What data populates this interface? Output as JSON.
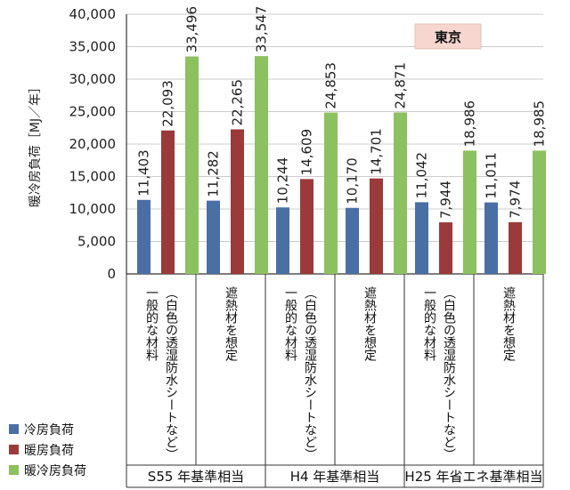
{
  "chart_data": {
    "type": "bar",
    "ylabel": "暖冷房負荷［MJ／年］",
    "ylim": [
      0,
      40000
    ],
    "yticks": [
      "0",
      "5,000",
      "10,000",
      "15,000",
      "20,000",
      "25,000",
      "30,000",
      "35,000",
      "40,000"
    ],
    "grid": true,
    "annotation": "東京",
    "categories": [
      [
        "一般的な材料",
        "（白色の透湿防水シートなど）"
      ],
      [
        "遮熱材を想定"
      ],
      [
        "一般的な材料",
        "（白色の透湿防水シートなど）"
      ],
      [
        "遮熱材を想定"
      ],
      [
        "一般的な材料",
        "（白色の透湿防水シートなど）"
      ],
      [
        "遮熱材を想定"
      ]
    ],
    "groups": [
      "S55 年基準相当",
      "H4 年基準相当",
      "H25 年省エネ基準相当"
    ],
    "series": [
      {
        "name": "冷房負荷",
        "color": "#4a6fa5",
        "values": [
          11403,
          11282,
          10244,
          10170,
          11042,
          11011
        ],
        "labels": [
          "11,403",
          "11,282",
          "10,244",
          "10,170",
          "11,042",
          "11,011"
        ]
      },
      {
        "name": "暖房負荷",
        "color": "#9b3a3a",
        "values": [
          22093,
          22265,
          14609,
          14701,
          7944,
          7974
        ],
        "labels": [
          "22,093",
          "22,265",
          "14,609",
          "14,701",
          "7,944",
          "7,974"
        ]
      },
      {
        "name": "暖冷房負荷",
        "color": "#8cc15f",
        "values": [
          33496,
          33547,
          24853,
          24871,
          18986,
          18985
        ],
        "labels": [
          "33,496",
          "33,547",
          "24,853",
          "24,871",
          "18,986",
          "18,985"
        ]
      }
    ],
    "legend_position": "bottom-left"
  }
}
